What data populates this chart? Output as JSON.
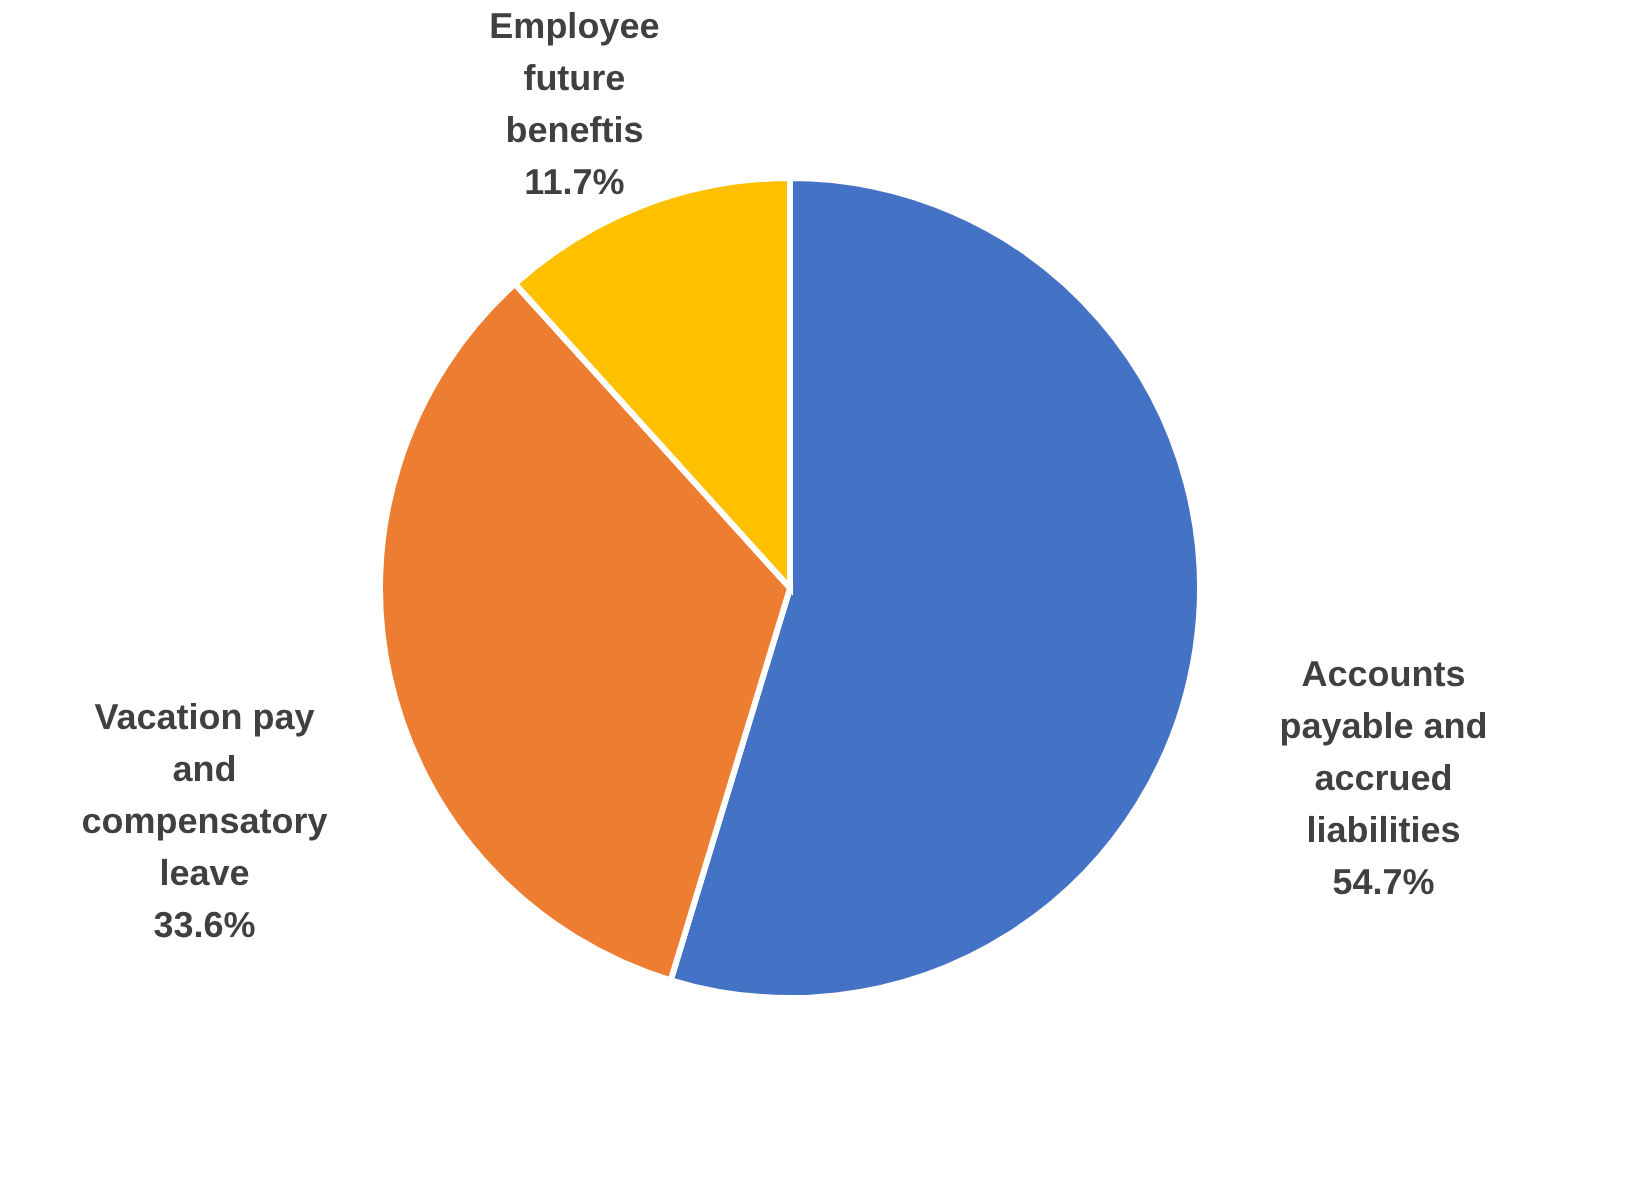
{
  "chart_data": {
    "type": "pie",
    "categories": [
      "Accounts payable and accrued liabilities",
      "Vacation pay and compensatory leave",
      "Employee future beneftis"
    ],
    "values": [
      54.7,
      33.6,
      11.7
    ],
    "colors": [
      "#4472c4",
      "#ed7d31",
      "#ffc000"
    ],
    "value_labels": [
      "54.7%",
      "33.6%",
      "11.7%"
    ],
    "legend": false
  }
}
